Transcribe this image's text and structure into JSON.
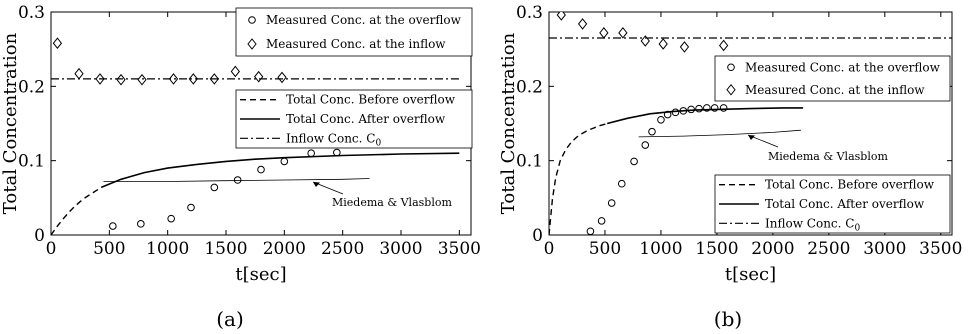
{
  "chart_data": [
    {
      "type": "line",
      "caption": "(a)",
      "xlabel": "t[sec]",
      "ylabel": "Total Concentration",
      "xlim": [
        0,
        3600
      ],
      "ylim": [
        0,
        0.3
      ],
      "xticks": [
        "0",
        "500",
        "1000",
        "1500",
        "2000",
        "2500",
        "3000",
        "3500"
      ],
      "yticks": [
        "0",
        "0.1",
        "0.2",
        "0.3"
      ],
      "grid": false,
      "legend_position": "top-right and middle-right (two boxes)",
      "annotation": "Miedema & Vlasblom",
      "series": [
        {
          "name": "Measured Conc. at the overflow",
          "style": "circle-markers",
          "x": [
            530,
            770,
            1030,
            1200,
            1400,
            1600,
            1800,
            2000,
            2230,
            2450
          ],
          "y": [
            0.012,
            0.015,
            0.022,
            0.037,
            0.064,
            0.074,
            0.088,
            0.099,
            0.11,
            0.111
          ]
        },
        {
          "name": "Measured Conc. at the inflow",
          "style": "diamond-markers",
          "x": [
            55,
            240,
            420,
            600,
            780,
            1050,
            1220,
            1400,
            1580,
            1780,
            1980
          ],
          "y": [
            0.258,
            0.217,
            0.21,
            0.209,
            0.209,
            0.21,
            0.21,
            0.21,
            0.22,
            0.213,
            0.212
          ]
        },
        {
          "name": "Total Conc. Before overflow",
          "style": "dashed",
          "x": [
            0,
            50,
            100,
            150,
            200,
            250,
            300,
            350,
            400,
            430
          ],
          "y": [
            0.0,
            0.011,
            0.021,
            0.03,
            0.038,
            0.045,
            0.051,
            0.056,
            0.061,
            0.064
          ]
        },
        {
          "name": "Total Conc. After overflow",
          "style": "solid",
          "x": [
            430,
            600,
            800,
            1000,
            1250,
            1500,
            1750,
            2000,
            2500,
            3000,
            3500
          ],
          "y": [
            0.064,
            0.075,
            0.084,
            0.09,
            0.095,
            0.099,
            0.102,
            0.104,
            0.107,
            0.109,
            0.11
          ]
        },
        {
          "name": "Inflow Conc. C0",
          "style": "dash-dot",
          "x": [
            0,
            3500
          ],
          "y": [
            0.21,
            0.21
          ]
        },
        {
          "name": "Miedema & Vlasblom",
          "style": "thin-solid",
          "x": [
            450,
            1000,
            1500,
            2000,
            2500,
            2730
          ],
          "y": [
            0.072,
            0.072,
            0.073,
            0.074,
            0.075,
            0.076
          ]
        }
      ]
    },
    {
      "type": "line",
      "caption": "(b)",
      "xlabel": "t[sec]",
      "ylabel": "Total Concentration",
      "xlim": [
        0,
        3600
      ],
      "ylim": [
        0,
        0.3
      ],
      "xticks": [
        "0",
        "500",
        "1000",
        "1500",
        "2000",
        "2500",
        "3000",
        "3500"
      ],
      "yticks": [
        "0",
        "0.1",
        "0.2",
        "0.3"
      ],
      "grid": false,
      "legend_position": "top-right and bottom-right (two boxes)",
      "annotation": "Miedema & Vlasblom",
      "series": [
        {
          "name": "Measured Conc. at the overflow",
          "style": "circle-markers",
          "x": [
            370,
            470,
            560,
            650,
            760,
            860,
            920,
            1000,
            1060,
            1130,
            1200,
            1270,
            1340,
            1410,
            1480,
            1560
          ],
          "y": [
            0.005,
            0.019,
            0.043,
            0.069,
            0.099,
            0.121,
            0.139,
            0.155,
            0.162,
            0.165,
            0.167,
            0.169,
            0.17,
            0.171,
            0.171,
            0.171
          ]
        },
        {
          "name": "Measured Conc. at the inflow",
          "style": "diamond-markers",
          "x": [
            110,
            300,
            490,
            660,
            860,
            1020,
            1210,
            1560
          ],
          "y": [
            0.296,
            0.284,
            0.272,
            0.272,
            0.261,
            0.257,
            0.253,
            0.255
          ]
        },
        {
          "name": "Total Conc. Before overflow",
          "style": "dashed",
          "x": [
            0,
            30,
            60,
            100,
            150,
            200,
            250,
            300,
            350,
            400,
            450,
            500,
            520
          ],
          "y": [
            0.0,
            0.048,
            0.077,
            0.1,
            0.115,
            0.125,
            0.132,
            0.137,
            0.141,
            0.144,
            0.147,
            0.149,
            0.15
          ]
        },
        {
          "name": "Total Conc. After overflow",
          "style": "solid",
          "x": [
            520,
            700,
            900,
            1100,
            1300,
            1500,
            1800,
            2100,
            2270
          ],
          "y": [
            0.15,
            0.157,
            0.163,
            0.166,
            0.168,
            0.169,
            0.17,
            0.171,
            0.171
          ]
        },
        {
          "name": "Inflow Conc. C0",
          "style": "dash-dot",
          "x": [
            0,
            3600
          ],
          "y": [
            0.265,
            0.265
          ]
        },
        {
          "name": "Miedema & Vlasblom",
          "style": "thin-solid",
          "x": [
            800,
            1200,
            1600,
            2000,
            2250
          ],
          "y": [
            0.132,
            0.133,
            0.135,
            0.138,
            0.141
          ]
        }
      ]
    }
  ]
}
